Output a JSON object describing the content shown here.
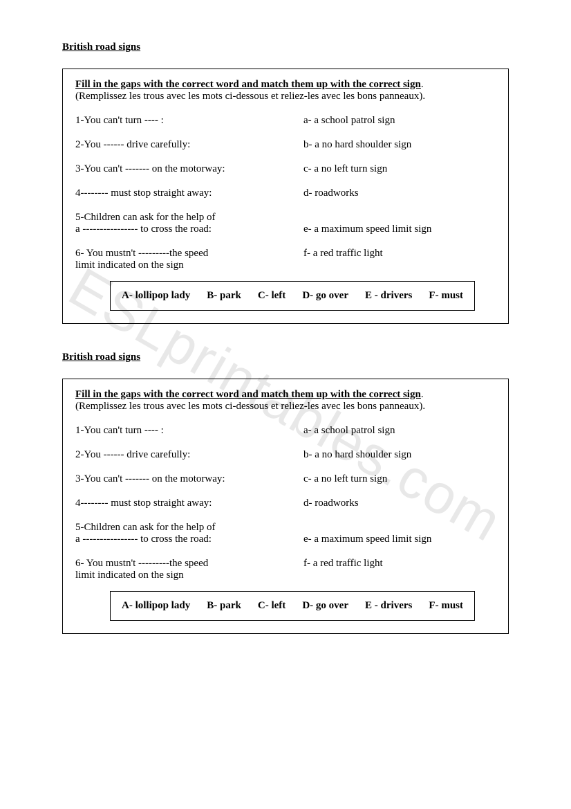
{
  "watermark": "ESLprintables.com",
  "sections": [
    {
      "title": "British road signs",
      "instructions_main": "Fill in the gaps with the correct word and match them up with the correct sign",
      "instructions_sub": "(Remplissez les trous avec les mots ci-dessous et reliez-les avec les bons panneaux).",
      "rows": [
        {
          "q": "1-You can't turn ---- :",
          "a": "a-   a  school patrol sign"
        },
        {
          "q": "2-You ------ drive carefully:",
          "a": "b- a no hard shoulder sign"
        },
        {
          "q": "3-You can't ------- on the motorway:",
          "a": "c- a no left turn sign"
        },
        {
          "q": "4-------- must stop straight away:",
          "a": "d- roadworks"
        }
      ],
      "row5": {
        "q_line1": "5-Children  can ask for the help of",
        "q_line2": " a ---------------- to cross the road:",
        "a": "e- a maximum speed limit sign"
      },
      "row6": {
        "q_line1": "6- You mustn't ---------the speed",
        "q_line2": "  limit indicated on the sign",
        "a": "f- a red traffic light"
      },
      "wordbank": [
        "A- lollipop lady",
        "B- park",
        "C-  left",
        "D-  go over",
        "E - drivers",
        "F- must"
      ]
    },
    {
      "title": "British road signs",
      "instructions_main": "Fill in the gaps with the correct word and match them up with the correct sign",
      "instructions_sub": "(Remplissez les trous avec les mots ci-dessous et reliez-les avec les bons panneaux).",
      "rows": [
        {
          "q": "1-You can't turn ---- :",
          "a": "a-   a  school patrol sign"
        },
        {
          "q": "2-You ------ drive carefully:",
          "a": "b- a no hard shoulder sign"
        },
        {
          "q": "3-You can't ------- on the motorway:",
          "a": "c- a no left turn sign"
        },
        {
          "q": "4-------- must stop straight away:",
          "a": "d- roadworks"
        }
      ],
      "row5": {
        "q_line1": "5-Children  can ask for the help of",
        "q_line2": " a ---------------- to cross the road:",
        "a": "e- a maximum speed limit sign"
      },
      "row6": {
        "q_line1": "6- You mustn't ---------the speed",
        "q_line2": "  limit indicated on the sign",
        "a": "f- a red traffic light"
      },
      "wordbank": [
        "A- lollipop lady",
        "B- park",
        "C-  left",
        "D-  go over",
        "E - drivers",
        "F- must"
      ]
    }
  ]
}
